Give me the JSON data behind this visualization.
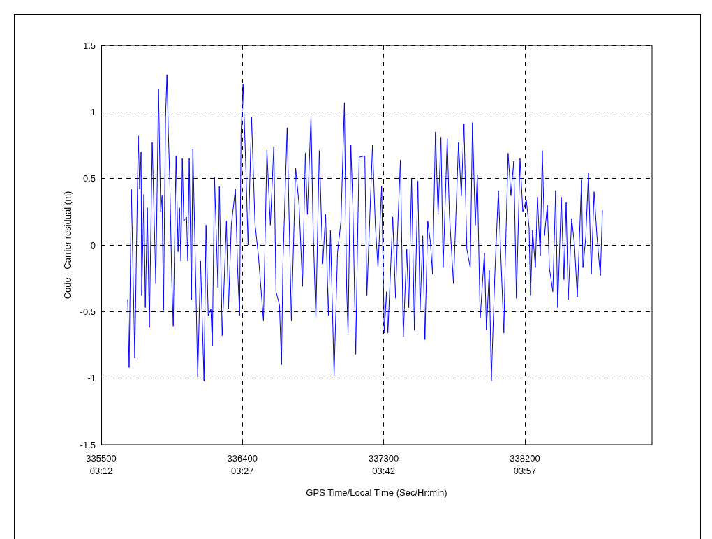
{
  "chart_data": {
    "type": "line",
    "xlabel": "GPS Time/Local Time (Sec/Hr:min)",
    "ylabel": "Code - Carrier residual (m)",
    "xlim": [
      335500,
      339010
    ],
    "ylim": [
      -1.5,
      1.5
    ],
    "xticks": [
      335500,
      336400,
      337300,
      338200
    ],
    "x2lim": [
      3.2,
      4.175
    ],
    "x2ticks": [
      {
        "value": 3.2,
        "label": "03:12"
      },
      {
        "value": 3.45,
        "label": "03:27"
      },
      {
        "value": 3.7,
        "label": "03:42"
      },
      {
        "value": 3.95,
        "label": "03:57"
      }
    ],
    "yticks": [
      -1.5,
      -1,
      -0.5,
      0,
      0.5,
      1,
      1.5
    ],
    "grid": true,
    "marker": "none",
    "line_style": "solid",
    "series": [
      {
        "color": "#0000ff",
        "x": [
          335669,
          335678,
          335692,
          335714,
          335736,
          335745,
          335754,
          335758,
          335772,
          335781,
          335794,
          335807,
          335825,
          335848,
          335865,
          335879,
          335888,
          335897,
          335910,
          335919,
          335928,
          335937,
          335950,
          335959,
          335977,
          335990,
          335999,
          336008,
          336017,
          336026,
          336044,
          336052,
          336061,
          336075,
          336084,
          336097,
          336115,
          336133,
          336155,
          336168,
          336182,
          336199,
          336208,
          336222,
          336244,
          336253,
          336271,
          336298,
          336311,
          336329,
          336355,
          336369,
          336382,
          336391,
          336404,
          336422,
          336436,
          336458,
          336480,
          336502,
          336534,
          336556,
          336578,
          336600,
          336614,
          336636,
          336649,
          336658,
          336685,
          336712,
          336739,
          336761,
          336783,
          336801,
          336814,
          336837,
          336850,
          336868,
          336890,
          336912,
          336930,
          336948,
          336961,
          336984,
          337006,
          337028,
          337050,
          337064,
          337073,
          337091,
          337104,
          337122,
          337135,
          337144,
          337180,
          337193,
          337229,
          337247,
          337264,
          337287,
          337304,
          337318,
          337327,
          337358,
          337376,
          337389,
          337407,
          337425,
          337447,
          337460,
          337478,
          337496,
          337518,
          337532,
          337549,
          337563,
          337581,
          337598,
          337612,
          337630,
          337647,
          337665,
          337679,
          337705,
          337719,
          337745,
          337777,
          337795,
          337812,
          337830,
          337852,
          337866,
          337884,
          337897,
          337915,
          337942,
          337955,
          337973,
          337986,
          338008,
          338031,
          338048,
          338066,
          338075,
          338093,
          338111,
          338129,
          338146,
          338169,
          338187,
          338209,
          338227,
          338236,
          338249,
          338267,
          338280,
          338298,
          338311,
          338325,
          338343,
          338356,
          338378,
          338396,
          338409,
          338432,
          338449,
          338463,
          338476,
          338498,
          338516,
          338534,
          338561,
          338570,
          338588,
          338605,
          338623,
          338641,
          338659,
          338681,
          338694
        ],
        "values": [
          -0.41,
          -0.92,
          0.42,
          -0.85,
          0.82,
          0.42,
          0.7,
          -0.38,
          0.38,
          -0.47,
          0.28,
          -0.62,
          0.77,
          -0.29,
          1.17,
          0.25,
          0.37,
          -0.49,
          0.96,
          1.28,
          0.84,
          0.49,
          -0.27,
          -0.61,
          0.67,
          -0.05,
          0.28,
          -0.12,
          0.65,
          0.18,
          0.21,
          -0.12,
          0.65,
          -0.41,
          0.72,
          0.04,
          -0.99,
          -0.12,
          -1.02,
          0.15,
          -0.53,
          -0.48,
          -0.76,
          0.51,
          -0.32,
          0.44,
          -0.68,
          0.18,
          -0.48,
          0.15,
          0.42,
          -0.17,
          -0.53,
          0.83,
          1.21,
          0.57,
          0.0,
          0.96,
          0.16,
          -0.08,
          -0.57,
          0.71,
          0.15,
          0.74,
          -0.35,
          -0.45,
          -0.9,
          -0.14,
          0.88,
          -0.57,
          0.58,
          0.3,
          -0.31,
          0.69,
          0.23,
          0.97,
          0.15,
          -0.55,
          0.71,
          -0.14,
          0.23,
          -0.53,
          0.11,
          -0.98,
          -0.06,
          0.18,
          1.07,
          -0.32,
          -0.66,
          0.75,
          0.28,
          -0.82,
          0.11,
          0.66,
          0.67,
          -0.38,
          0.75,
          0.15,
          -0.17,
          0.44,
          -0.66,
          -0.35,
          -0.66,
          0.21,
          -0.4,
          0.11,
          0.64,
          -0.69,
          -0.03,
          -0.47,
          0.5,
          -0.64,
          0.48,
          -0.49,
          0.07,
          -0.71,
          0.18,
          0.02,
          -0.22,
          0.85,
          0.23,
          0.81,
          -0.17,
          0.8,
          0.23,
          -0.29,
          0.77,
          0.37,
          0.91,
          -0.03,
          -0.17,
          0.92,
          0.15,
          0.53,
          -0.55,
          -0.06,
          -0.64,
          -0.19,
          -1.02,
          -0.24,
          0.41,
          -0.12,
          -0.66,
          -0.12,
          0.69,
          0.37,
          0.63,
          -0.4,
          0.65,
          0.25,
          0.34,
          0.13,
          -0.38,
          0.11,
          -0.17,
          0.36,
          -0.08,
          0.71,
          0.07,
          0.3,
          -0.17,
          -0.35,
          0.41,
          -0.47,
          0.36,
          -0.26,
          0.32,
          -0.41,
          0.2,
          0.0,
          -0.39,
          0.49,
          -0.17,
          0.06,
          0.54,
          -0.22,
          0.4,
          0.07,
          -0.23,
          0.26
        ]
      }
    ]
  }
}
